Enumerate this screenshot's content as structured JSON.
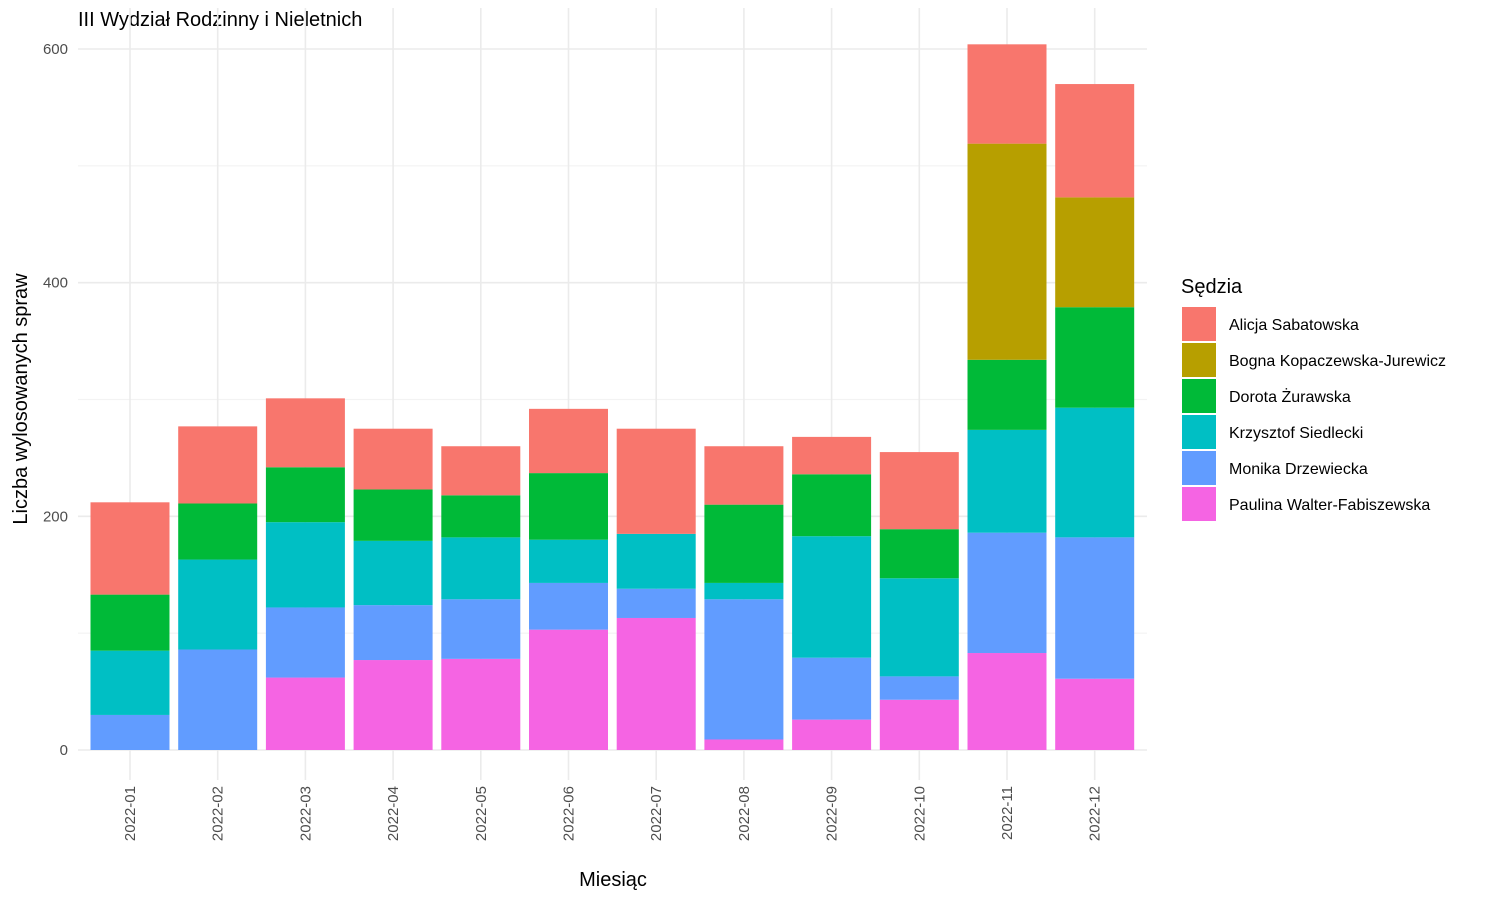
{
  "chart_data": {
    "type": "bar",
    "stacked": true,
    "title": "III Wydział Rodzinny i Nieletnich",
    "xlabel": "Miesiąc",
    "ylabel": "Liczba wylosowanych spraw",
    "ylim": [
      0,
      600
    ],
    "yticks": [
      0,
      200,
      400,
      600
    ],
    "grid": true,
    "legend_position": "right",
    "legend_title": "Sędzia",
    "categories": [
      "2022-01",
      "2022-02",
      "2022-03",
      "2022-04",
      "2022-05",
      "2022-06",
      "2022-07",
      "2022-08",
      "2022-09",
      "2022-10",
      "2022-11",
      "2022-12"
    ],
    "series": [
      {
        "name": "Paulina Walter-Fabiszewska",
        "color": "#F564E3",
        "values": [
          0,
          0,
          62,
          77,
          78,
          103,
          113,
          9,
          26,
          43,
          83,
          61
        ]
      },
      {
        "name": "Monika Drzewiecka",
        "color": "#619CFF",
        "values": [
          30,
          86,
          60,
          47,
          51,
          40,
          25,
          120,
          53,
          20,
          103,
          121
        ]
      },
      {
        "name": "Krzysztof Siedlecki",
        "color": "#00BFC4",
        "values": [
          55,
          77,
          73,
          55,
          53,
          37,
          47,
          14,
          104,
          84,
          88,
          111
        ]
      },
      {
        "name": "Dorota Żurawska",
        "color": "#00BA38",
        "values": [
          48,
          48,
          47,
          44,
          36,
          57,
          0,
          67,
          53,
          42,
          60,
          86
        ]
      },
      {
        "name": "Bogna Kopaczewska-Jurewicz",
        "color": "#B79F00",
        "values": [
          0,
          0,
          0,
          0,
          0,
          0,
          0,
          0,
          0,
          0,
          185,
          94
        ]
      },
      {
        "name": "Alicja Sabatowska",
        "color": "#F8766D",
        "values": [
          79,
          66,
          59,
          52,
          42,
          55,
          90,
          50,
          32,
          66,
          85,
          97
        ]
      }
    ],
    "legend_order": [
      "Alicja Sabatowska",
      "Bogna Kopaczewska-Jurewicz",
      "Dorota Żurawska",
      "Krzysztof Siedlecki",
      "Monika Drzewiecka",
      "Paulina Walter-Fabiszewska"
    ]
  }
}
